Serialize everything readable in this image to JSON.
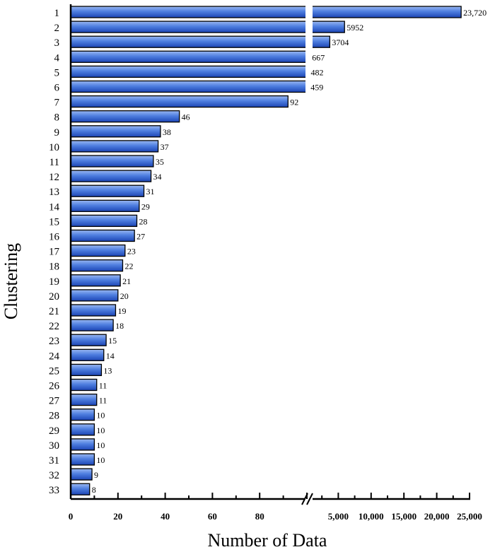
{
  "chart_data": {
    "type": "bar",
    "orientation": "horizontal",
    "broken_axis": true,
    "title": "",
    "xlabel": "Number of Data",
    "ylabel": "Clustering",
    "categories": [
      "1",
      "2",
      "3",
      "4",
      "5",
      "6",
      "7",
      "8",
      "9",
      "10",
      "11",
      "12",
      "13",
      "14",
      "15",
      "16",
      "17",
      "18",
      "19",
      "20",
      "21",
      "22",
      "23",
      "24",
      "25",
      "26",
      "27",
      "28",
      "29",
      "30",
      "31",
      "32",
      "33"
    ],
    "values": [
      23720,
      5952,
      3704,
      667,
      482,
      459,
      92,
      46,
      38,
      37,
      35,
      34,
      31,
      29,
      28,
      27,
      23,
      22,
      21,
      20,
      19,
      18,
      15,
      14,
      13,
      11,
      11,
      10,
      10,
      10,
      10,
      9,
      8
    ],
    "value_labels": [
      "23,720",
      "5952",
      "3704",
      "667",
      "482",
      "459",
      "92",
      "46",
      "38",
      "37",
      "35",
      "34",
      "31",
      "29",
      "28",
      "27",
      "23",
      "22",
      "21",
      "20",
      "19",
      "18",
      "15",
      "14",
      "13",
      "11",
      "11",
      "10",
      "10",
      "10",
      "10",
      "9",
      "8"
    ],
    "x_ticks_low": [
      "0",
      "20",
      "40",
      "60",
      "80"
    ],
    "x_ticks_high": [
      "5,000",
      "10,000",
      "15,000",
      "20,000",
      "25,000"
    ],
    "x_ticks_low_values": [
      0,
      20,
      40,
      60,
      80
    ],
    "x_ticks_high_values": [
      5000,
      10000,
      15000,
      20000,
      25000
    ],
    "xlim_low": [
      0,
      100
    ],
    "xlim_high": [
      0,
      25000
    ],
    "grid": false,
    "legend": "none",
    "colors": {
      "bar_top": "#9ab8f2",
      "bar_mid": "#4f7fe0",
      "bar_bottom": "#1c44b4",
      "bar_edge": "#000000"
    }
  }
}
